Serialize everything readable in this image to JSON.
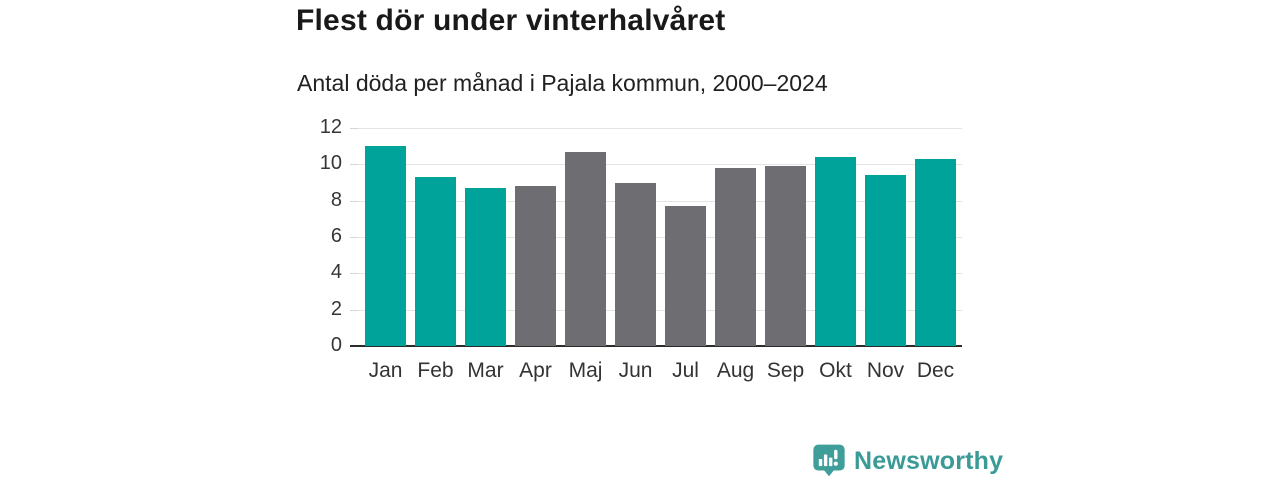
{
  "header": {
    "title": "Flest dör under vinterhalvåret",
    "subtitle": "Antal döda per månad i Pajala kommun, 2000–2024"
  },
  "chart_data": {
    "type": "bar",
    "title": "Flest dör under vinterhalvåret",
    "subtitle": "Antal döda per månad i Pajala kommun, 2000–2024",
    "categories": [
      "Jan",
      "Feb",
      "Mar",
      "Apr",
      "Maj",
      "Jun",
      "Jul",
      "Aug",
      "Sep",
      "Okt",
      "Nov",
      "Dec"
    ],
    "values": [
      11.0,
      9.3,
      8.7,
      8.8,
      10.7,
      9.0,
      7.7,
      9.8,
      9.9,
      10.4,
      9.4,
      10.3
    ],
    "bar_color_keys": [
      "winter",
      "winter",
      "winter",
      "summer",
      "summer",
      "summer",
      "summer",
      "summer",
      "summer",
      "winter",
      "winter",
      "winter"
    ],
    "colors": {
      "winter": "#00a39a",
      "summer": "#6e6d72"
    },
    "xlabel": "",
    "ylabel": "",
    "ylim": [
      0,
      12
    ],
    "yticks": [
      0,
      2,
      4,
      6,
      8,
      10,
      12
    ],
    "grid": true,
    "legend": false,
    "axis_color": "#2b2b2b",
    "gridline_color": "#e4e4e4"
  },
  "branding": {
    "logo_text": "Newsworthy",
    "logo_color": "#399a96",
    "logo_icon": "bar-chart-speech-bubble-icon"
  }
}
